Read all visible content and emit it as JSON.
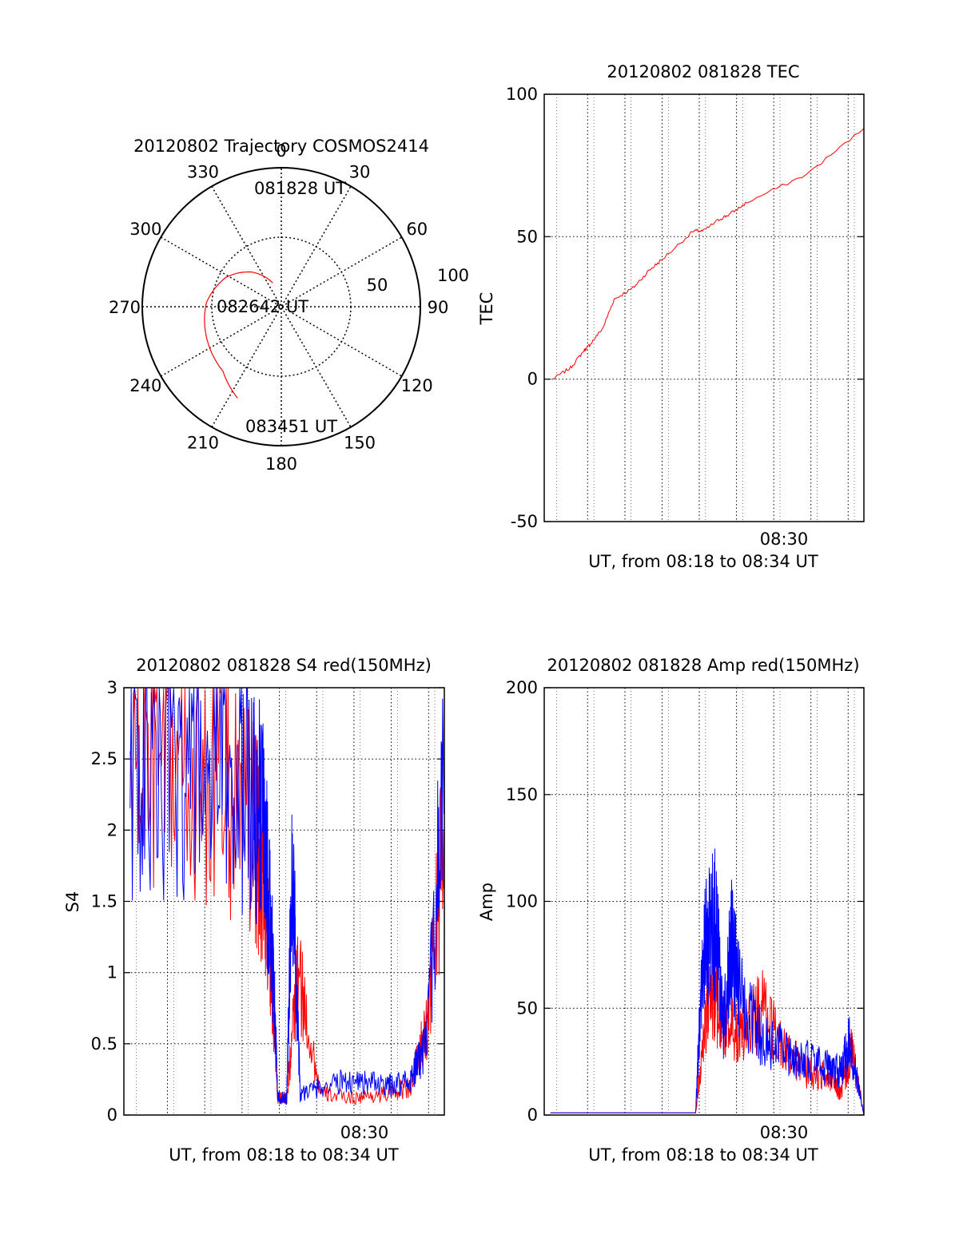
{
  "chart_data": [
    {
      "id": "polar",
      "type": "scatter",
      "subtype": "polar-trajectory",
      "title": "20120802 Trajectory COSMOS2414",
      "azimuth_labels": [
        "0",
        "30",
        "60",
        "90",
        "120",
        "150",
        "180",
        "210",
        "240",
        "270",
        "300",
        "330"
      ],
      "radial_labels": [
        "50",
        "100"
      ],
      "radial_range": [
        0,
        100
      ],
      "start_label": "081828 UT",
      "mid_label": "082642 UT",
      "end_label": "083451 UT",
      "series": [
        {
          "color": "#ff0000",
          "points_az_el": [
            [
              340.1,
              18.2
            ],
            [
              319.7,
              32.7
            ],
            [
              297.9,
              45.1
            ],
            [
              273.2,
              53.9
            ],
            [
              245.4,
              58.5
            ],
            [
              222.0,
              62.6
            ],
            [
              205.6,
              72.9
            ]
          ]
        }
      ]
    },
    {
      "id": "tec",
      "type": "line",
      "title": "20120802 081828 TEC",
      "ylabel": "TEC",
      "xlabel": "UT, from 08:18 to 08:34 UT",
      "xtick_label": "08:30",
      "ylim": [
        -50,
        100
      ],
      "yticks": [
        -50,
        0,
        50,
        100
      ],
      "xlim": [
        8.2944,
        8.5808
      ],
      "grid": true,
      "series": [
        {
          "color": "#ff0000",
          "x": [
            8.302,
            8.318,
            8.33,
            8.335,
            8.347,
            8.357,
            8.374,
            8.388,
            8.4,
            8.428,
            8.437,
            8.451,
            8.461,
            8.476,
            8.53,
            8.5808
          ],
          "y": [
            0,
            4,
            10,
            12,
            18,
            28,
            32,
            38,
            42,
            52,
            52,
            56,
            58,
            62,
            72,
            88
          ]
        }
      ]
    },
    {
      "id": "s4",
      "type": "line",
      "title": "20120802 081828 S4 red(150MHz)",
      "ylabel": "S4",
      "xlabel": "UT, from 08:18 to 08:34 UT",
      "xtick_label": "08:30",
      "ylim": [
        0,
        3
      ],
      "yticks": [
        0,
        0.5,
        1,
        1.5,
        2,
        2.5,
        3
      ],
      "ytick_labels": [
        "0",
        "0.5",
        "1",
        "1.5",
        "2",
        "2.5",
        "3"
      ],
      "xlim": [
        8.2944,
        8.5808
      ],
      "grid": true,
      "series": [
        {
          "color": "#ff0000",
          "x": [
            8.3,
            8.34,
            8.38,
            8.41,
            8.42,
            8.428,
            8.432,
            8.44,
            8.45,
            8.47,
            8.5,
            8.53,
            8.55,
            8.565,
            8.5808
          ],
          "y": [
            2.5,
            2.4,
            2.3,
            2.0,
            1.6,
            0.8,
            0.12,
            0.12,
            1.0,
            0.15,
            0.12,
            0.15,
            0.2,
            0.6,
            2.0
          ]
        },
        {
          "color": "#0000ff",
          "x": [
            8.3,
            8.34,
            8.38,
            8.41,
            8.42,
            8.428,
            8.432,
            8.44,
            8.445,
            8.452,
            8.47,
            8.5,
            8.53,
            8.55,
            8.565,
            8.5808
          ],
          "y": [
            2.4,
            2.5,
            2.4,
            2.3,
            2.0,
            1.0,
            0.12,
            0.12,
            1.8,
            0.15,
            0.2,
            0.25,
            0.2,
            0.25,
            0.5,
            2.4
          ]
        }
      ]
    },
    {
      "id": "amp",
      "type": "line",
      "title": "20120802 081828 Amp red(150MHz)",
      "ylabel": "Amp",
      "xlabel": "UT, from 08:18 to 08:34 UT",
      "xtick_label": "08:30",
      "ylim": [
        0,
        200
      ],
      "yticks": [
        0,
        50,
        100,
        150,
        200
      ],
      "xlim": [
        8.2944,
        8.5808
      ],
      "grid": true,
      "series": [
        {
          "color": "#ff0000",
          "x": [
            8.3,
            8.43,
            8.438,
            8.445,
            8.455,
            8.47,
            8.49,
            8.51,
            8.53,
            8.55,
            8.56,
            8.57,
            8.5808
          ],
          "y": [
            1,
            1,
            40,
            55,
            45,
            35,
            50,
            30,
            20,
            18,
            10,
            30,
            0
          ]
        },
        {
          "color": "#0000ff",
          "x": [
            8.3,
            8.43,
            8.436,
            8.442,
            8.448,
            8.455,
            8.462,
            8.47,
            8.49,
            8.51,
            8.53,
            8.55,
            8.56,
            8.568,
            8.5808
          ],
          "y": [
            1,
            1,
            70,
            85,
            90,
            40,
            80,
            55,
            35,
            30,
            25,
            22,
            20,
            35,
            0
          ]
        }
      ]
    }
  ]
}
